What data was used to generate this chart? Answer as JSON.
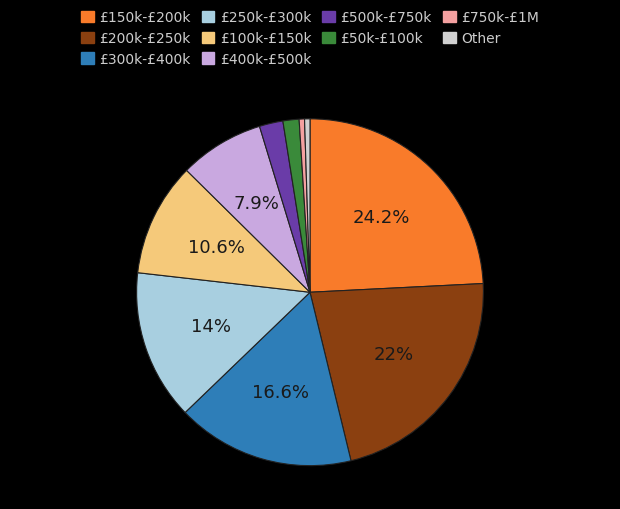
{
  "labels": [
    "£150k-£200k",
    "£200k-£250k",
    "£300k-£400k",
    "£250k-£300k",
    "£100k-£150k",
    "£400k-£500k",
    "£500k-£750k",
    "£50k-£100k",
    "£750k-£1M",
    "Other"
  ],
  "values": [
    24.2,
    22.0,
    16.6,
    14.0,
    10.6,
    7.9,
    2.2,
    1.5,
    0.5,
    0.5
  ],
  "colors": [
    "#f97b2a",
    "#8b4010",
    "#2e7eb8",
    "#a8cfe0",
    "#f5c97a",
    "#c9a8e0",
    "#6a3ca8",
    "#3a8a3a",
    "#f4a0a0",
    "#d0d0d0"
  ],
  "label_pcts": [
    "24.2%",
    "22%",
    "16.6%",
    "14%",
    "10.6%",
    "7.9%",
    "",
    "",
    "",
    ""
  ],
  "legend_order": [
    [
      "£150k-£200k",
      "#f97b2a"
    ],
    [
      "£200k-£250k",
      "#8b4010"
    ],
    [
      "£300k-£400k",
      "#2e7eb8"
    ],
    [
      "£250k-£300k",
      "#a8cfe0"
    ],
    [
      "£100k-£150k",
      "#f5c97a"
    ],
    [
      "£400k-£500k",
      "#c9a8e0"
    ],
    [
      "£500k-£750k",
      "#6a3ca8"
    ],
    [
      "£50k-£100k",
      "#3a8a3a"
    ],
    [
      "£750k-£1M",
      "#f4a0a0"
    ],
    [
      "Other",
      "#d0d0d0"
    ]
  ],
  "background_color": "#000000",
  "text_color": "#1a1a1a",
  "label_fontsize": 13,
  "legend_fontsize": 10
}
